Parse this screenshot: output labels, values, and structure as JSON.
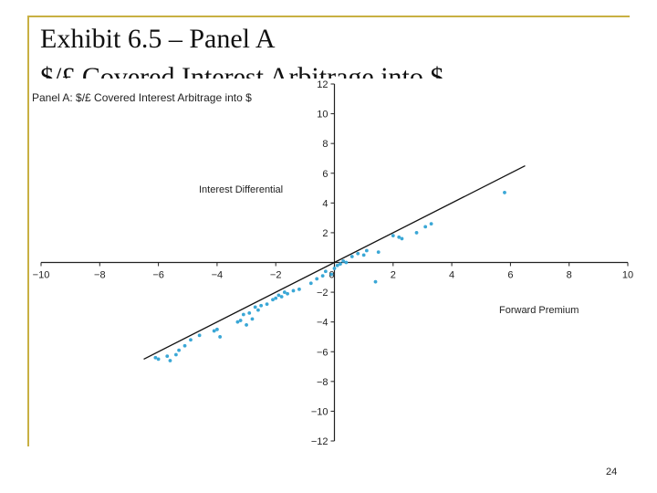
{
  "slide": {
    "title": "Exhibit 6.5 – Panel A",
    "subtitle": "$/£ Covered Interest Arbitrage into $",
    "page_number": "24",
    "accent_color": "#c8b043"
  },
  "chart_data": {
    "type": "scatter",
    "title": "Panel A: $/£ Covered Interest Arbitrage into $",
    "xlabel": "Forward Premium",
    "ylabel": "Interest Differential",
    "xlim": [
      -10,
      10
    ],
    "ylim": [
      -12,
      12
    ],
    "xticks": [
      -10,
      -8,
      -6,
      -4,
      -2,
      0,
      2,
      4,
      6,
      8,
      10
    ],
    "yticks": [
      -12,
      -10,
      -8,
      -6,
      -4,
      -2,
      0,
      2,
      4,
      6,
      8,
      10,
      12
    ],
    "grid": false,
    "point_color": "#3aa7d6",
    "line_color": "#111111",
    "parity_line": {
      "x": [
        -6.5,
        6.5
      ],
      "y": [
        -6.5,
        6.5
      ]
    },
    "points": {
      "x": [
        -6.1,
        -6.0,
        -5.7,
        -5.6,
        -5.4,
        -5.3,
        -5.1,
        -4.9,
        -4.6,
        -4.1,
        -4.0,
        -3.9,
        -3.3,
        -3.2,
        -3.1,
        -3.0,
        -2.9,
        -2.8,
        -2.7,
        -2.6,
        -2.5,
        -2.3,
        -2.1,
        -2.0,
        -1.9,
        -1.8,
        -1.7,
        -1.6,
        -1.4,
        -1.2,
        -0.8,
        -0.6,
        -0.4,
        -0.3,
        -0.1,
        0.0,
        0.1,
        0.2,
        0.3,
        0.4,
        0.6,
        0.8,
        1.0,
        1.1,
        1.5,
        1.4,
        2.0,
        2.2,
        2.3,
        2.8,
        3.1,
        3.3,
        5.8
      ],
      "y": [
        -6.4,
        -6.5,
        -6.3,
        -6.6,
        -6.2,
        -5.9,
        -5.6,
        -5.2,
        -4.9,
        -4.6,
        -4.5,
        -5.0,
        -4.0,
        -3.9,
        -3.5,
        -4.2,
        -3.4,
        -3.8,
        -3.0,
        -3.2,
        -2.9,
        -2.8,
        -2.5,
        -2.4,
        -2.2,
        -2.3,
        -2.0,
        -2.1,
        -1.9,
        -1.8,
        -1.4,
        -1.1,
        -0.9,
        -0.6,
        -0.8,
        -0.4,
        -0.2,
        -0.1,
        0.1,
        0.0,
        0.4,
        0.6,
        0.5,
        0.8,
        0.7,
        -1.3,
        1.8,
        1.7,
        1.6,
        2.0,
        2.4,
        2.6,
        4.7
      ]
    }
  }
}
